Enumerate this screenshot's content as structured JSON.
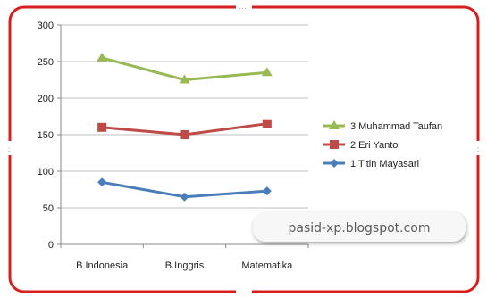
{
  "chart_data": {
    "type": "line",
    "categories": [
      "B.Indonesia",
      "B.Inggris",
      "Matematika"
    ],
    "series": [
      {
        "name": "1 Titin Mayasari",
        "values": [
          85,
          65,
          73
        ],
        "color": "#4a7ebb",
        "marker": "diamond"
      },
      {
        "name": "2 Eri Yanto",
        "values": [
          160,
          150,
          165
        ],
        "color": "#be4b48",
        "marker": "square"
      },
      {
        "name": "3 Muhammad Taufan",
        "values": [
          255,
          225,
          235
        ],
        "color": "#98b954",
        "marker": "triangle"
      }
    ],
    "ylim": [
      0,
      300
    ],
    "yticks": [
      "0",
      "50",
      "100",
      "150",
      "200",
      "250",
      "300"
    ],
    "grid": true,
    "legend_order": [
      2,
      1,
      0
    ],
    "legend_position": "right"
  },
  "watermark": {
    "text": "pasid-xp.blogspot.com"
  },
  "colors": {
    "frame_border": "#d81f1f",
    "gridline": "#bfbfbf",
    "handle": "#9a9a9a"
  }
}
